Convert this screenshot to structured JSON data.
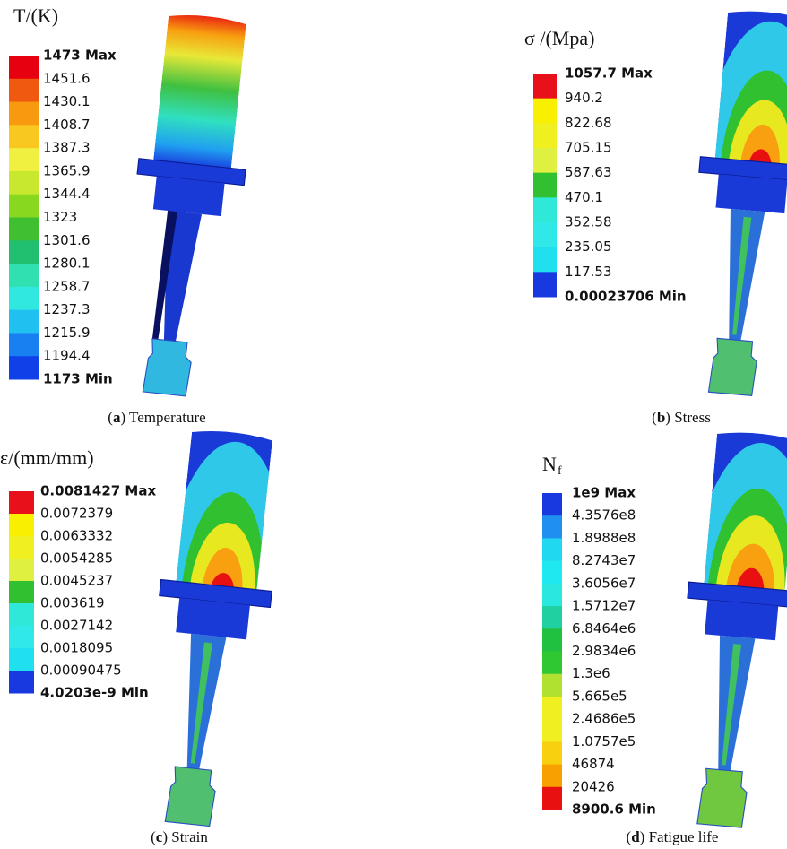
{
  "panels": [
    {
      "title": "T/(K)",
      "labels": [
        "1473 Max",
        "1451.6",
        "1430.1",
        "1408.7",
        "1387.3",
        "1365.9",
        "1344.4",
        "1323",
        "1301.6",
        "1280.1",
        "1258.7",
        "1237.3",
        "1215.9",
        "1194.4",
        "1173 Min"
      ],
      "caption": [
        "(",
        "a",
        ") Temperature"
      ]
    },
    {
      "title": "σ /(Mpa)",
      "labels": [
        "1057.7 Max",
        "940.2",
        "822.68",
        "705.15",
        "587.63",
        "470.1",
        "352.58",
        "235.05",
        "117.53",
        "0.00023706 Min"
      ],
      "caption": [
        "(",
        "b",
        ") Stress"
      ]
    },
    {
      "title": "ε/(mm/mm)",
      "labels": [
        "0.0081427 Max",
        "0.0072379",
        "0.0063332",
        "0.0054285",
        "0.0045237",
        "0.003619",
        "0.0027142",
        "0.0018095",
        "0.00090475",
        "4.0203e-9 Min"
      ],
      "caption": [
        "(",
        "c",
        ") Strain"
      ]
    },
    {
      "title": "N",
      "title_sub": "f",
      "labels": [
        "1e9 Max",
        "4.3576e8",
        "1.8988e8",
        "8.2743e7",
        "3.6056e7",
        "1.5712e7",
        "6.8464e6",
        "2.9834e6",
        "1.3e6",
        "5.665e5",
        "2.4686e5",
        "1.0757e5",
        "46874",
        "20426",
        "8900.6 Min"
      ],
      "caption": [
        "(",
        "d",
        ") Fatigue life"
      ]
    }
  ]
}
